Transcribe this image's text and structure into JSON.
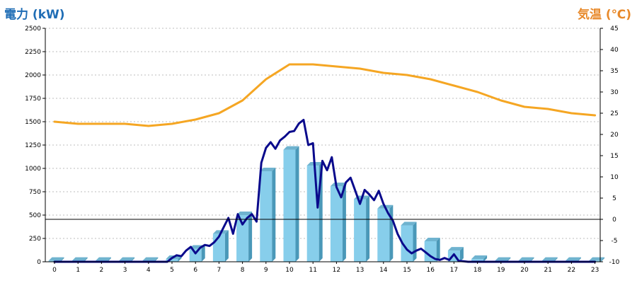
{
  "chart_data": {
    "type": "bar",
    "title": "",
    "xlabel": "",
    "ylabel_left": "電力 (kW)",
    "ylabel_right": "気温 (℃)",
    "ylim_left": [
      0,
      2500
    ],
    "ylim_right": [
      -10,
      45
    ],
    "left_ticks": [
      0,
      250,
      500,
      750,
      1000,
      1250,
      1500,
      1750,
      2000,
      2250,
      2500
    ],
    "right_ticks": [
      -10,
      -5,
      0,
      5,
      10,
      15,
      20,
      25,
      30,
      35,
      40,
      45
    ],
    "categories": [
      "0",
      "1",
      "2",
      "3",
      "4",
      "5",
      "6",
      "7",
      "8",
      "9",
      "10",
      "11",
      "12",
      "13",
      "14",
      "15",
      "16",
      "17",
      "18",
      "19",
      "20",
      "21",
      "22",
      "23"
    ],
    "grid": true,
    "series": [
      {
        "kind": "bar",
        "axis": "left",
        "values": [
          10,
          10,
          10,
          10,
          10,
          30,
          140,
          300,
          500,
          970,
          1200,
          1030,
          810,
          670,
          570,
          390,
          220,
          120,
          30,
          10,
          10,
          10,
          10,
          10
        ],
        "color": "#87ceeb"
      },
      {
        "kind": "line",
        "axis": "left",
        "color": "#0a0a8c",
        "x": [
          0,
          1,
          2,
          3,
          4,
          4.8,
          5.0,
          5.2,
          5.4,
          5.6,
          5.8,
          6.0,
          6.2,
          6.4,
          6.6,
          6.8,
          7.0,
          7.2,
          7.4,
          7.6,
          7.8,
          8.0,
          8.2,
          8.4,
          8.6,
          8.8,
          9.0,
          9.2,
          9.4,
          9.6,
          9.8,
          10.0,
          10.2,
          10.4,
          10.6,
          10.8,
          11.0,
          11.2,
          11.4,
          11.6,
          11.8,
          12.0,
          12.2,
          12.4,
          12.6,
          12.8,
          13.0,
          13.2,
          13.4,
          13.6,
          13.8,
          14.0,
          14.2,
          14.4,
          14.6,
          14.8,
          15.0,
          15.2,
          15.4,
          15.6,
          15.8,
          16.0,
          16.2,
          16.4,
          16.6,
          16.8,
          17.0,
          17.2,
          17.4,
          17.6,
          17.8,
          18.0,
          19,
          20,
          21,
          22,
          23
        ],
        "values": [
          0,
          0,
          0,
          0,
          0,
          0,
          40,
          70,
          60,
          120,
          160,
          90,
          150,
          180,
          170,
          210,
          270,
          370,
          470,
          300,
          510,
          400,
          470,
          510,
          430,
          1060,
          1220,
          1280,
          1210,
          1300,
          1340,
          1390,
          1400,
          1480,
          1520,
          1250,
          1270,
          580,
          1080,
          980,
          1120,
          800,
          690,
          850,
          900,
          760,
          620,
          770,
          720,
          660,
          760,
          620,
          520,
          440,
          300,
          200,
          130,
          90,
          120,
          140,
          100,
          60,
          30,
          20,
          40,
          20,
          80,
          10,
          5,
          0,
          0,
          0,
          0,
          0,
          0,
          0,
          0
        ]
      },
      {
        "kind": "line",
        "axis": "right",
        "color": "#f5a623",
        "x": [
          0,
          1,
          2,
          3,
          4,
          5,
          6,
          7,
          8,
          9,
          10,
          11,
          12,
          13,
          14,
          15,
          16,
          17,
          18,
          19,
          20,
          21,
          22,
          23
        ],
        "values": [
          23.0,
          22.5,
          22.5,
          22.5,
          22.0,
          22.5,
          23.5,
          25.0,
          28.0,
          33.0,
          36.5,
          36.5,
          36.0,
          35.5,
          34.5,
          34.0,
          33.0,
          31.5,
          30.0,
          28.0,
          26.5,
          26.0,
          25.0,
          24.5
        ]
      }
    ]
  }
}
